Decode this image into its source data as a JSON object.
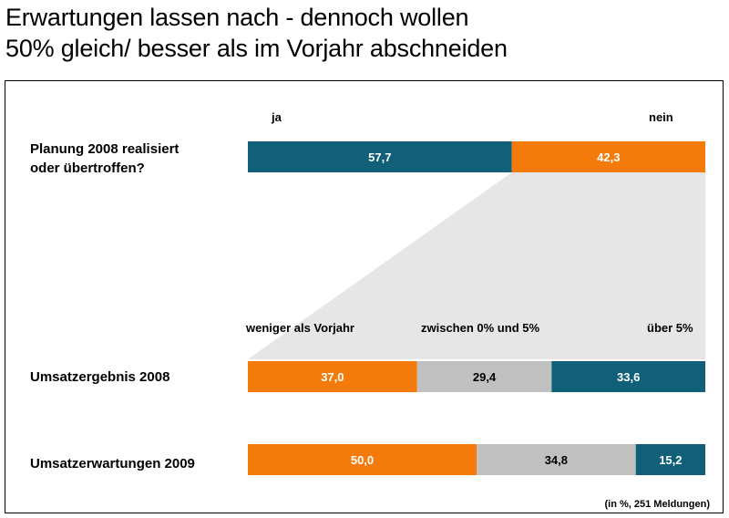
{
  "title": {
    "line1": "Erwartungen lassen nach - dennoch wollen",
    "line2": "50% gleich/ besser als im Vorjahr abschneiden"
  },
  "colors": {
    "teal": "#10607a",
    "orange": "#f47a0c",
    "gray": "#c0c0c0",
    "funnel": "#e6e6e6"
  },
  "chart_data": [
    {
      "type": "bar",
      "orientation": "horizontal",
      "stacked": true,
      "unit": "%",
      "categories": [
        "Planung 2008 realisiert oder übertroffen?"
      ],
      "category_lines": [
        "Planung 2008 realisiert",
        "oder übertroffen?"
      ],
      "series": [
        {
          "name": "ja",
          "values": [
            57.7
          ],
          "labels": [
            "57,7"
          ],
          "color": "teal"
        },
        {
          "name": "nein",
          "values": [
            42.3
          ],
          "labels": [
            "42,3"
          ],
          "color": "orange"
        }
      ]
    },
    {
      "type": "bar",
      "orientation": "horizontal",
      "stacked": true,
      "unit": "%",
      "categories": [
        "Umsatzergebnis 2008",
        "Umsatzerwartungen 2009"
      ],
      "series": [
        {
          "name": "weniger als Vorjahr",
          "values": [
            37.0,
            50.0
          ],
          "labels": [
            "37,0",
            "50,0"
          ],
          "color": "orange"
        },
        {
          "name": "zwischen 0% und 5%",
          "values": [
            29.4,
            34.8
          ],
          "labels": [
            "29,4",
            "34,8"
          ],
          "color": "gray"
        },
        {
          "name": "über 5%",
          "values": [
            33.6,
            15.2
          ],
          "labels": [
            "33,6",
            "15,2"
          ],
          "color": "teal"
        }
      ]
    }
  ],
  "footnote": "(in %, 251 Meldungen)"
}
